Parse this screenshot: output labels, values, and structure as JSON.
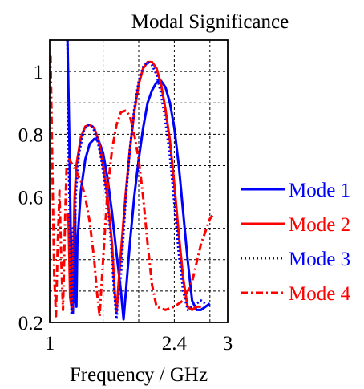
{
  "chart_data": {
    "type": "line",
    "title": "Modal Significance",
    "xlabel": "Frequency / GHz",
    "ylabel": "",
    "xlim": [
      1,
      3
    ],
    "ylim": [
      0.2,
      1.1
    ],
    "x_ticks": [
      {
        "value": 1,
        "label": "1"
      },
      {
        "value": 2.4,
        "label": "2.4"
      },
      {
        "value": 3,
        "label": "3"
      }
    ],
    "y_ticks": [
      {
        "value": 0.2,
        "label": "0.2"
      },
      {
        "value": 0.6,
        "label": "0.6"
      },
      {
        "value": 0.8,
        "label": "0.8"
      },
      {
        "value": 1,
        "label": "1"
      }
    ],
    "grid": true,
    "legend_position": "right",
    "series": [
      {
        "name": "Mode 1",
        "color": "#0000ff",
        "style": "solid",
        "points": [
          [
            1.2,
            1.1
          ],
          [
            1.22,
            0.8
          ],
          [
            1.235,
            0.5
          ],
          [
            1.25,
            0.35
          ],
          [
            1.26,
            0.23
          ],
          [
            1.27,
            0.36
          ],
          [
            1.285,
            0.56
          ],
          [
            1.3,
            0.25
          ],
          [
            1.31,
            0.45
          ],
          [
            1.35,
            0.62
          ],
          [
            1.4,
            0.72
          ],
          [
            1.45,
            0.77
          ],
          [
            1.5,
            0.785
          ],
          [
            1.55,
            0.78
          ],
          [
            1.6,
            0.74
          ],
          [
            1.65,
            0.66
          ],
          [
            1.7,
            0.55
          ],
          [
            1.75,
            0.42
          ],
          [
            1.8,
            0.3
          ],
          [
            1.83,
            0.21
          ],
          [
            1.85,
            0.28
          ],
          [
            1.9,
            0.45
          ],
          [
            1.95,
            0.6
          ],
          [
            2.0,
            0.72
          ],
          [
            2.05,
            0.82
          ],
          [
            2.1,
            0.9
          ],
          [
            2.15,
            0.94
          ],
          [
            2.2,
            0.965
          ],
          [
            2.25,
            0.97
          ],
          [
            2.3,
            0.95
          ],
          [
            2.35,
            0.9
          ],
          [
            2.4,
            0.82
          ],
          [
            2.45,
            0.7
          ],
          [
            2.5,
            0.55
          ],
          [
            2.55,
            0.4
          ],
          [
            2.6,
            0.27
          ],
          [
            2.65,
            0.24
          ],
          [
            2.7,
            0.24
          ],
          [
            2.75,
            0.25
          ],
          [
            2.8,
            0.26
          ]
        ]
      },
      {
        "name": "Mode 2",
        "color": "#ff0000",
        "style": "solid",
        "points": [
          [
            1.21,
            0.55
          ],
          [
            1.23,
            0.28
          ],
          [
            1.25,
            0.24
          ],
          [
            1.28,
            0.6
          ],
          [
            1.3,
            0.7
          ],
          [
            1.35,
            0.79
          ],
          [
            1.4,
            0.825
          ],
          [
            1.45,
            0.83
          ],
          [
            1.5,
            0.82
          ],
          [
            1.55,
            0.78
          ],
          [
            1.6,
            0.7
          ],
          [
            1.65,
            0.6
          ],
          [
            1.7,
            0.45
          ],
          [
            1.73,
            0.3
          ],
          [
            1.75,
            0.23
          ],
          [
            1.78,
            0.35
          ],
          [
            1.85,
            0.6
          ],
          [
            1.9,
            0.75
          ],
          [
            1.95,
            0.87
          ],
          [
            2.0,
            0.96
          ],
          [
            2.05,
            1.01
          ],
          [
            2.1,
            1.03
          ],
          [
            2.15,
            1.03
          ],
          [
            2.2,
            1.01
          ],
          [
            2.25,
            0.96
          ],
          [
            2.3,
            0.88
          ],
          [
            2.35,
            0.78
          ],
          [
            2.4,
            0.64
          ],
          [
            2.45,
            0.48
          ],
          [
            2.5,
            0.34
          ],
          [
            2.55,
            0.25
          ],
          [
            2.6,
            0.24
          ],
          [
            2.65,
            0.25
          ],
          [
            2.7,
            0.25
          ]
        ]
      },
      {
        "name": "Mode 3",
        "color": "#0000ff",
        "style": "dotted",
        "points": [
          [
            1.2,
            1.1
          ],
          [
            1.215,
            0.7
          ],
          [
            1.23,
            0.4
          ],
          [
            1.245,
            0.23
          ],
          [
            1.26,
            0.5
          ],
          [
            1.275,
            0.26
          ],
          [
            1.29,
            0.6
          ],
          [
            1.33,
            0.74
          ],
          [
            1.38,
            0.81
          ],
          [
            1.43,
            0.83
          ],
          [
            1.48,
            0.825
          ],
          [
            1.53,
            0.79
          ],
          [
            1.58,
            0.72
          ],
          [
            1.63,
            0.62
          ],
          [
            1.68,
            0.48
          ],
          [
            1.72,
            0.32
          ],
          [
            1.75,
            0.21
          ],
          [
            1.8,
            0.35
          ],
          [
            1.85,
            0.58
          ],
          [
            1.9,
            0.75
          ],
          [
            1.95,
            0.88
          ],
          [
            2.0,
            0.97
          ],
          [
            2.05,
            1.015
          ],
          [
            2.1,
            1.03
          ],
          [
            2.15,
            1.02
          ],
          [
            2.2,
            0.99
          ],
          [
            2.25,
            0.93
          ],
          [
            2.3,
            0.84
          ],
          [
            2.35,
            0.73
          ],
          [
            2.4,
            0.58
          ],
          [
            2.45,
            0.42
          ],
          [
            2.5,
            0.3
          ],
          [
            2.55,
            0.24
          ],
          [
            2.6,
            0.25
          ],
          [
            2.7,
            0.27
          ],
          [
            2.75,
            0.26
          ]
        ]
      },
      {
        "name": "Mode 4",
        "color": "#ff0000",
        "style": "dashdot",
        "points": [
          [
            1.01,
            1.05
          ],
          [
            1.03,
            0.7
          ],
          [
            1.05,
            0.35
          ],
          [
            1.07,
            0.22
          ],
          [
            1.09,
            0.45
          ],
          [
            1.11,
            0.62
          ],
          [
            1.13,
            0.4
          ],
          [
            1.15,
            0.24
          ],
          [
            1.17,
            0.5
          ],
          [
            1.19,
            0.7
          ],
          [
            1.22,
            0.72
          ],
          [
            1.26,
            0.7
          ],
          [
            1.3,
            0.68
          ],
          [
            1.35,
            0.65
          ],
          [
            1.4,
            0.6
          ],
          [
            1.45,
            0.52
          ],
          [
            1.5,
            0.4
          ],
          [
            1.53,
            0.3
          ],
          [
            1.56,
            0.22
          ],
          [
            1.6,
            0.4
          ],
          [
            1.65,
            0.62
          ],
          [
            1.7,
            0.75
          ],
          [
            1.75,
            0.83
          ],
          [
            1.8,
            0.87
          ],
          [
            1.85,
            0.875
          ],
          [
            1.9,
            0.86
          ],
          [
            1.95,
            0.8
          ],
          [
            2.0,
            0.72
          ],
          [
            2.05,
            0.6
          ],
          [
            2.1,
            0.45
          ],
          [
            2.15,
            0.32
          ],
          [
            2.2,
            0.25
          ],
          [
            2.3,
            0.24
          ],
          [
            2.4,
            0.25
          ],
          [
            2.5,
            0.27
          ],
          [
            2.6,
            0.33
          ],
          [
            2.7,
            0.45
          ],
          [
            2.8,
            0.53
          ],
          [
            2.85,
            0.55
          ]
        ]
      }
    ]
  }
}
